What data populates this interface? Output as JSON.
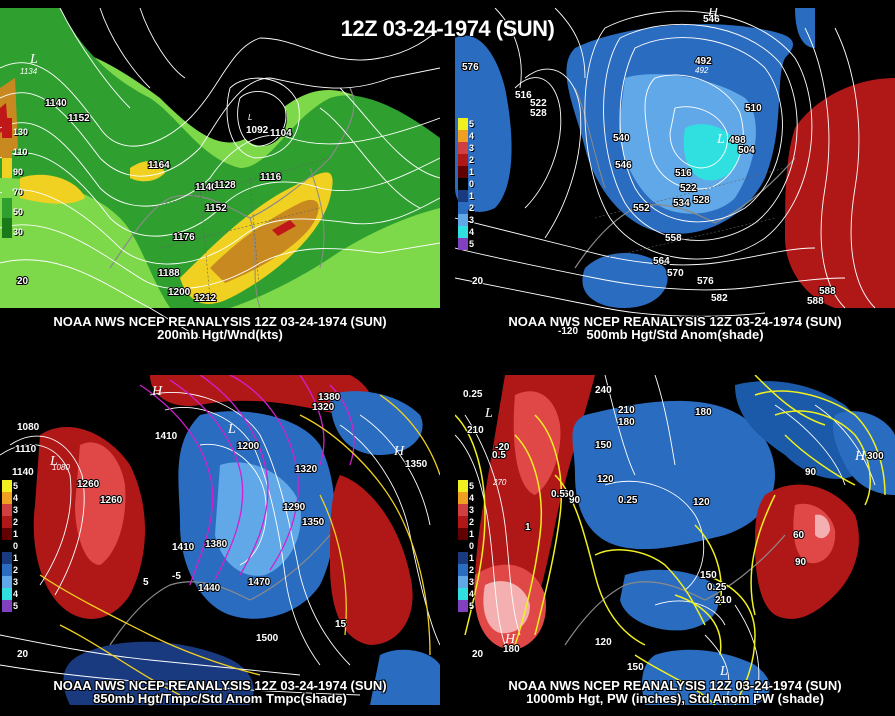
{
  "title": "12Z 03-24-1974 (SUN)",
  "panels": [
    {
      "id": "200mb",
      "caption1": "NOAA NWS NCEP REANALYSIS 12Z 03-24-1974 (SUN)",
      "caption2": "200mb Hgt/Wnd(kts)",
      "legend": [
        "130",
        "110",
        "90",
        "70",
        "50",
        "30"
      ],
      "contour_labels": [
        "1134",
        "1140",
        "1152",
        "1164",
        "1140",
        "1128",
        "1152",
        "1176",
        "1188",
        "1200",
        "1212",
        "1092",
        "1104",
        "1116",
        "20"
      ],
      "axis_labels": [
        "20"
      ]
    },
    {
      "id": "500mb",
      "caption1": "NOAA NWS NCEP REANALYSIS 12Z 03-24-1974 (SUN)",
      "caption2": "500mb Hgt/Std Anom(shade)",
      "legend": [
        "5",
        "4",
        "3",
        "2",
        "1",
        "0",
        "1",
        "2",
        "3",
        "4",
        "5"
      ],
      "contour_labels": [
        "546",
        "516",
        "522",
        "528",
        "492",
        "492",
        "540",
        "546",
        "510",
        "498",
        "504",
        "516",
        "522",
        "528",
        "534",
        "552",
        "558",
        "564",
        "570",
        "576",
        "582",
        "588"
      ],
      "axis_labels": [
        "20",
        "-120"
      ]
    },
    {
      "id": "850mb",
      "caption1": "NOAA NWS NCEP REANALYSIS 12Z 03-24-1974 (SUN)",
      "caption2": "850mb Hgt/Tmpc/Std Anom Tmpc(shade)",
      "legend": [
        "5",
        "4",
        "3",
        "2",
        "1",
        "0",
        "1",
        "2",
        "3",
        "4",
        "5"
      ],
      "contour_labels": [
        "1080",
        "1110",
        "1140",
        "1080",
        "1260",
        "1260",
        "1410",
        "1200",
        "1320",
        "1350",
        "1290",
        "1350",
        "1380",
        "1410",
        "1440",
        "1470",
        "1500",
        "1380",
        "1320",
        "-5",
        "5",
        "15"
      ],
      "axis_labels": [
        "20"
      ]
    },
    {
      "id": "1000mb",
      "caption1": "NOAA NWS NCEP REANALYSIS 12Z 03-24-1974 (SUN)",
      "caption2": "1000mb Hgt, PW (inches), Std Anom PW (shade)",
      "legend": [
        "5",
        "4",
        "3",
        "2",
        "1",
        "0",
        "1",
        "2",
        "3",
        "4",
        "5"
      ],
      "contour_labels": [
        "0.25",
        "210",
        "0.5",
        "270",
        "240",
        "210",
        "180",
        "150",
        "120",
        "90",
        "60",
        "0.25",
        "120",
        "0.5",
        "1",
        "150",
        "90",
        "60",
        "0.25",
        "210",
        "180",
        "150",
        "120",
        "90",
        "300",
        "-20",
        "180"
      ],
      "axis_labels": [
        "20"
      ]
    }
  ],
  "colors": {
    "wind_green_light": "#7dd84a",
    "wind_green_dark": "#2fa02f",
    "wind_yellow": "#f0d020",
    "wind_orange": "#c88a20",
    "wind_red": "#c01818",
    "anom_red": "#b01818",
    "anom_red_light": "#f08080",
    "anom_blue": "#2a6cc0",
    "anom_blue_light": "#60a8e8",
    "anom_cyan": "#30e0e0",
    "temp_magenta": "#d020d0",
    "pw_yellow": "#f0f020",
    "contour_white": "#ffffff"
  }
}
